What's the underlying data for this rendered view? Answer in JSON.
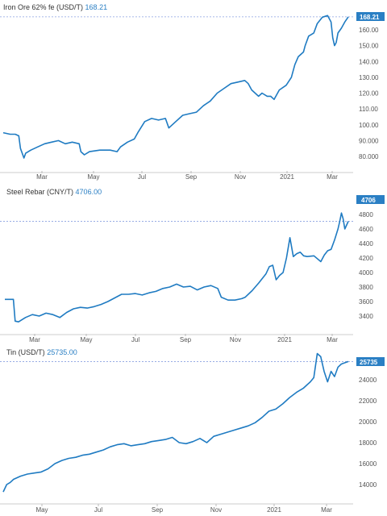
{
  "colors": {
    "line": "#1f7bc2",
    "badge": "#2a7fc4",
    "lastline": "#8aa0e0",
    "axis": "#cccccc"
  },
  "chart_data": [
    {
      "type": "line",
      "title": "Iron Ore 62% fe (USD/T)",
      "last_value_label": "168.21",
      "last_value": 168.21,
      "x_ticks": [
        "Mar",
        "May",
        "Jul",
        "Sep",
        "Nov",
        "2021",
        "Mar"
      ],
      "y_ticks": [
        "80.000",
        "90.000",
        "100.00",
        "110.00",
        "120.00",
        "130.00",
        "140.00",
        "150.00",
        "160.00"
      ],
      "ylim": [
        73,
        172
      ],
      "series": [
        {
          "values": [
            [
              0,
              95
            ],
            [
              0.02,
              94
            ],
            [
              0.035,
              94
            ],
            [
              0.045,
              93
            ],
            [
              0.05,
              85
            ],
            [
              0.06,
              79
            ],
            [
              0.065,
              82
            ],
            [
              0.08,
              84
            ],
            [
              0.1,
              86
            ],
            [
              0.12,
              88
            ],
            [
              0.14,
              89
            ],
            [
              0.16,
              90
            ],
            [
              0.18,
              88
            ],
            [
              0.2,
              89
            ],
            [
              0.22,
              88
            ],
            [
              0.225,
              83
            ],
            [
              0.235,
              81
            ],
            [
              0.25,
              83
            ],
            [
              0.28,
              84
            ],
            [
              0.31,
              84
            ],
            [
              0.33,
              83
            ],
            [
              0.34,
              86
            ],
            [
              0.36,
              89
            ],
            [
              0.38,
              91
            ],
            [
              0.39,
              95
            ],
            [
              0.41,
              102
            ],
            [
              0.43,
              104
            ],
            [
              0.45,
              103
            ],
            [
              0.47,
              104
            ],
            [
              0.48,
              98
            ],
            [
              0.5,
              102
            ],
            [
              0.52,
              106
            ],
            [
              0.54,
              107
            ],
            [
              0.56,
              108
            ],
            [
              0.58,
              112
            ],
            [
              0.6,
              115
            ],
            [
              0.62,
              120
            ],
            [
              0.64,
              123
            ],
            [
              0.66,
              126
            ],
            [
              0.68,
              127
            ],
            [
              0.7,
              128
            ],
            [
              0.71,
              126
            ],
            [
              0.72,
              122
            ],
            [
              0.74,
              118
            ],
            [
              0.75,
              120
            ],
            [
              0.765,
              118
            ],
            [
              0.775,
              118
            ],
            [
              0.785,
              116
            ],
            [
              0.8,
              122
            ],
            [
              0.82,
              125
            ],
            [
              0.835,
              130
            ],
            [
              0.845,
              138
            ],
            [
              0.855,
              143
            ],
            [
              0.87,
              146
            ],
            [
              0.875,
              150
            ],
            [
              0.885,
              156
            ],
            [
              0.9,
              158
            ],
            [
              0.91,
              164
            ],
            [
              0.925,
              168
            ],
            [
              0.94,
              169
            ],
            [
              0.95,
              165
            ],
            [
              0.955,
              155
            ],
            [
              0.96,
              150
            ],
            [
              0.965,
              152
            ],
            [
              0.97,
              158
            ],
            [
              0.98,
              161
            ],
            [
              0.99,
              165
            ],
            [
              1.0,
              168.21
            ]
          ]
        }
      ]
    },
    {
      "type": "line",
      "title": "Steel Rebar (CNY/T)",
      "last_value_label": "4706.00",
      "badge": "4706",
      "last_value": 4706,
      "x_ticks": [
        "Mar",
        "May",
        "Jul",
        "Sep",
        "Nov",
        "2021",
        "Mar"
      ],
      "y_ticks": [
        "3400",
        "3600",
        "3800",
        "4000",
        "4200",
        "4400",
        "4600",
        "4800"
      ],
      "ylim": [
        3250,
        4900
      ],
      "series": [
        {
          "values": [
            [
              0,
              3630
            ],
            [
              0.025,
              3630
            ],
            [
              0.03,
              3330
            ],
            [
              0.04,
              3320
            ],
            [
              0.06,
              3380
            ],
            [
              0.08,
              3420
            ],
            [
              0.1,
              3400
            ],
            [
              0.12,
              3440
            ],
            [
              0.14,
              3420
            ],
            [
              0.16,
              3380
            ],
            [
              0.18,
              3450
            ],
            [
              0.2,
              3500
            ],
            [
              0.22,
              3520
            ],
            [
              0.24,
              3510
            ],
            [
              0.26,
              3530
            ],
            [
              0.28,
              3560
            ],
            [
              0.3,
              3600
            ],
            [
              0.32,
              3650
            ],
            [
              0.34,
              3700
            ],
            [
              0.36,
              3700
            ],
            [
              0.38,
              3710
            ],
            [
              0.4,
              3690
            ],
            [
              0.42,
              3720
            ],
            [
              0.44,
              3740
            ],
            [
              0.46,
              3780
            ],
            [
              0.48,
              3800
            ],
            [
              0.5,
              3840
            ],
            [
              0.52,
              3800
            ],
            [
              0.54,
              3810
            ],
            [
              0.56,
              3760
            ],
            [
              0.58,
              3800
            ],
            [
              0.6,
              3820
            ],
            [
              0.62,
              3780
            ],
            [
              0.63,
              3660
            ],
            [
              0.65,
              3620
            ],
            [
              0.67,
              3620
            ],
            [
              0.69,
              3640
            ],
            [
              0.7,
              3660
            ],
            [
              0.72,
              3750
            ],
            [
              0.74,
              3860
            ],
            [
              0.76,
              3980
            ],
            [
              0.77,
              4080
            ],
            [
              0.78,
              4100
            ],
            [
              0.79,
              3900
            ],
            [
              0.8,
              3960
            ],
            [
              0.81,
              4000
            ],
            [
              0.82,
              4200
            ],
            [
              0.83,
              4480
            ],
            [
              0.84,
              4220
            ],
            [
              0.85,
              4260
            ],
            [
              0.86,
              4280
            ],
            [
              0.87,
              4230
            ],
            [
              0.88,
              4220
            ],
            [
              0.9,
              4230
            ],
            [
              0.92,
              4150
            ],
            [
              0.93,
              4240
            ],
            [
              0.94,
              4300
            ],
            [
              0.95,
              4320
            ],
            [
              0.96,
              4450
            ],
            [
              0.97,
              4600
            ],
            [
              0.975,
              4700
            ],
            [
              0.98,
              4820
            ],
            [
              0.985,
              4740
            ],
            [
              0.99,
              4600
            ],
            [
              1.0,
              4706
            ]
          ]
        }
      ]
    },
    {
      "type": "line",
      "title": "Tin (USD/T)",
      "last_value_label": "25735.00",
      "badge": "25735",
      "last_value": 25735,
      "x_ticks": [
        "May",
        "Jul",
        "Sep",
        "Nov",
        "2021",
        "Mar"
      ],
      "y_ticks": [
        "14000",
        "16000",
        "18000",
        "20000",
        "22000",
        "24000"
      ],
      "ylim": [
        12800,
        27000
      ],
      "series": [
        {
          "values": [
            [
              0,
              13300
            ],
            [
              0.01,
              14000
            ],
            [
              0.02,
              14200
            ],
            [
              0.03,
              14500
            ],
            [
              0.05,
              14800
            ],
            [
              0.07,
              15000
            ],
            [
              0.09,
              15100
            ],
            [
              0.11,
              15200
            ],
            [
              0.13,
              15500
            ],
            [
              0.15,
              16000
            ],
            [
              0.17,
              16300
            ],
            [
              0.19,
              16500
            ],
            [
              0.21,
              16600
            ],
            [
              0.23,
              16800
            ],
            [
              0.25,
              16900
            ],
            [
              0.27,
              17100
            ],
            [
              0.29,
              17300
            ],
            [
              0.31,
              17600
            ],
            [
              0.33,
              17800
            ],
            [
              0.35,
              17900
            ],
            [
              0.37,
              17700
            ],
            [
              0.39,
              17800
            ],
            [
              0.41,
              17900
            ],
            [
              0.43,
              18100
            ],
            [
              0.45,
              18200
            ],
            [
              0.47,
              18300
            ],
            [
              0.49,
              18500
            ],
            [
              0.51,
              18000
            ],
            [
              0.53,
              17900
            ],
            [
              0.55,
              18100
            ],
            [
              0.57,
              18400
            ],
            [
              0.59,
              18000
            ],
            [
              0.61,
              18600
            ],
            [
              0.63,
              18800
            ],
            [
              0.65,
              19000
            ],
            [
              0.67,
              19200
            ],
            [
              0.69,
              19400
            ],
            [
              0.71,
              19600
            ],
            [
              0.73,
              19900
            ],
            [
              0.75,
              20400
            ],
            [
              0.77,
              21000
            ],
            [
              0.79,
              21200
            ],
            [
              0.81,
              21700
            ],
            [
              0.83,
              22300
            ],
            [
              0.85,
              22800
            ],
            [
              0.87,
              23200
            ],
            [
              0.89,
              23800
            ],
            [
              0.9,
              24200
            ],
            [
              0.91,
              26500
            ],
            [
              0.92,
              26200
            ],
            [
              0.93,
              24800
            ],
            [
              0.94,
              23800
            ],
            [
              0.95,
              24800
            ],
            [
              0.96,
              24300
            ],
            [
              0.97,
              25200
            ],
            [
              0.98,
              25500
            ],
            [
              1.0,
              25735
            ]
          ]
        }
      ]
    }
  ]
}
